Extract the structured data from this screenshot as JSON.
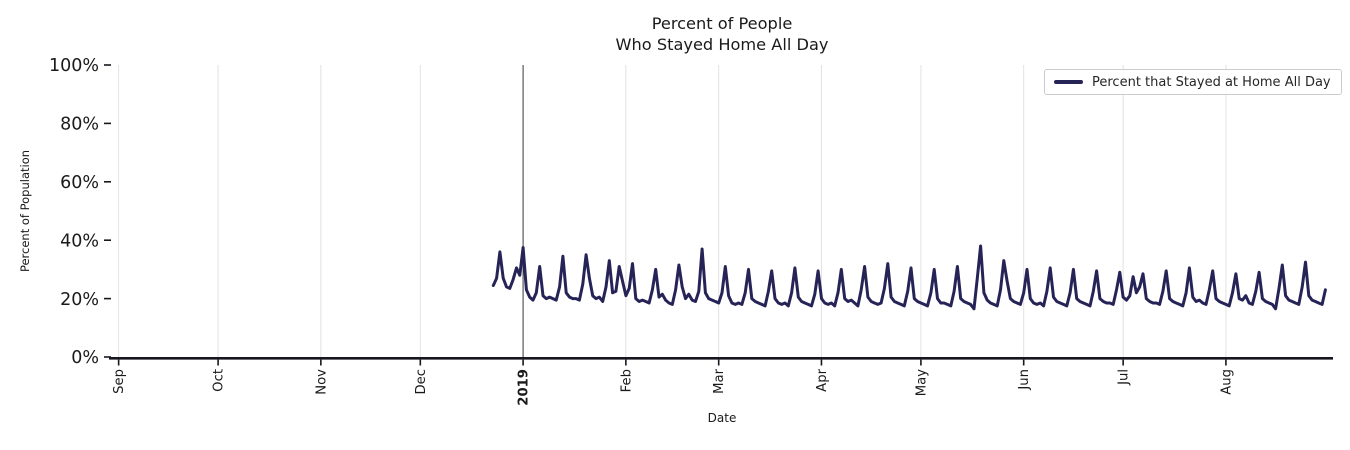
{
  "title": {
    "line1": "Percent of People",
    "line2": "Who Stayed Home All Day"
  },
  "axes": {
    "xlabel": "Date",
    "ylabel": "Percent of Population"
  },
  "legend": {
    "label": "Percent that Stayed at Home All Day"
  },
  "colors": {
    "line": "#262457",
    "grid": "#e2e2e2",
    "year_line": "#3a3a3a",
    "spine": "#17171f",
    "text": "#1a1a1a",
    "legend_border": "#cccccc"
  },
  "chart_data": {
    "type": "line",
    "title": "Percent of People Who Stayed Home All Day",
    "xlabel": "Date",
    "ylabel": "Percent of Population",
    "ylim": [
      0,
      100
    ],
    "grid": "vertical gridlines at month starts only",
    "legend_position": "upper right",
    "x_domain_days": [
      -2,
      366
    ],
    "x_axis_origin": "Sep 1 2018; day offsets below are days since Sep 1",
    "x_ticks": [
      {
        "day": 0,
        "label": "Sep",
        "bold": false
      },
      {
        "day": 30,
        "label": "Oct",
        "bold": false
      },
      {
        "day": 61,
        "label": "Nov",
        "bold": false
      },
      {
        "day": 91,
        "label": "Dec",
        "bold": false
      },
      {
        "day": 122,
        "label": "2019",
        "bold": true
      },
      {
        "day": 153,
        "label": "Feb",
        "bold": false
      },
      {
        "day": 181,
        "label": "Mar",
        "bold": false
      },
      {
        "day": 212,
        "label": "Apr",
        "bold": false
      },
      {
        "day": 242,
        "label": "May",
        "bold": false
      },
      {
        "day": 273,
        "label": "Jun",
        "bold": false
      },
      {
        "day": 303,
        "label": "Jul",
        "bold": false
      },
      {
        "day": 334,
        "label": "Aug",
        "bold": false
      }
    ],
    "y_ticks": [
      {
        "value": 0,
        "label": "0%"
      },
      {
        "value": 20,
        "label": "20%"
      },
      {
        "value": 40,
        "label": "40%"
      },
      {
        "value": 60,
        "label": "60%"
      },
      {
        "value": 80,
        "label": "80%"
      },
      {
        "value": 100,
        "label": "100%"
      }
    ],
    "year_line_day": 122,
    "series": [
      {
        "name": "Percent that Stayed at Home All Day",
        "start_day_offset": 113,
        "frequency": "daily",
        "unit": "percent of population",
        "values": [
          24.5,
          27,
          36,
          27,
          24,
          23.5,
          26.5,
          30.5,
          28,
          37.5,
          23,
          20.5,
          19.5,
          22,
          31,
          21,
          20,
          20.5,
          20,
          19.5,
          24,
          34.5,
          22,
          20.5,
          20,
          20,
          19.5,
          25,
          35,
          27,
          21,
          20,
          20.5,
          19,
          24,
          33,
          22,
          22.5,
          31,
          26,
          21,
          23.5,
          32,
          20,
          19,
          19.5,
          19,
          18.5,
          23,
          30,
          20.5,
          21.5,
          19.5,
          18.5,
          18,
          23,
          31.5,
          24,
          20,
          21.5,
          19.5,
          19,
          22.5,
          37,
          22,
          20,
          19.5,
          19,
          18.5,
          22,
          31,
          21,
          18.5,
          18,
          18.5,
          18,
          22,
          30,
          20,
          19,
          18.5,
          18,
          17.5,
          22.5,
          29.5,
          20,
          18.5,
          18,
          18.5,
          17.5,
          22,
          30.5,
          20.5,
          19,
          18.5,
          18,
          17.5,
          21.5,
          29.5,
          20,
          18.5,
          18,
          18.5,
          17.5,
          22,
          30,
          20,
          19,
          19.5,
          18.5,
          17.5,
          23,
          31,
          20.5,
          19,
          18.5,
          18,
          18.5,
          23.5,
          32,
          20.5,
          19,
          18.5,
          18,
          17.5,
          22.5,
          30.5,
          20,
          19,
          18.5,
          18,
          17.5,
          22,
          30,
          20,
          18.5,
          18.5,
          18,
          17.5,
          22.5,
          31,
          20,
          19,
          18.5,
          18,
          16.5,
          27,
          38,
          22,
          19.5,
          18.5,
          18,
          17.5,
          23,
          33,
          26,
          20,
          19,
          18.5,
          18,
          22,
          30,
          20,
          18.5,
          18,
          18.5,
          17.5,
          22.5,
          30.5,
          20.5,
          19,
          18.5,
          18,
          17.5,
          22,
          30,
          20,
          19,
          18.5,
          18,
          17.5,
          22.5,
          29.5,
          20,
          19,
          18.5,
          18.5,
          18,
          23,
          29,
          20.5,
          19.5,
          21,
          27.5,
          22,
          24,
          28.5,
          20,
          19,
          18.5,
          18.5,
          18,
          22.5,
          29.5,
          20,
          19,
          18.5,
          18,
          17.5,
          22,
          30.5,
          20.5,
          19,
          19.5,
          18.5,
          18,
          23,
          29.5,
          20,
          19,
          18.5,
          18,
          17.5,
          22,
          28.5,
          20,
          19.5,
          21,
          18.5,
          18,
          22.5,
          29,
          20,
          19,
          18.5,
          18,
          16.5,
          23.5,
          31.5,
          21,
          19.5,
          19,
          18.5,
          18,
          24,
          32.5,
          21,
          19.5,
          19,
          18.5,
          18,
          23
        ]
      }
    ]
  }
}
